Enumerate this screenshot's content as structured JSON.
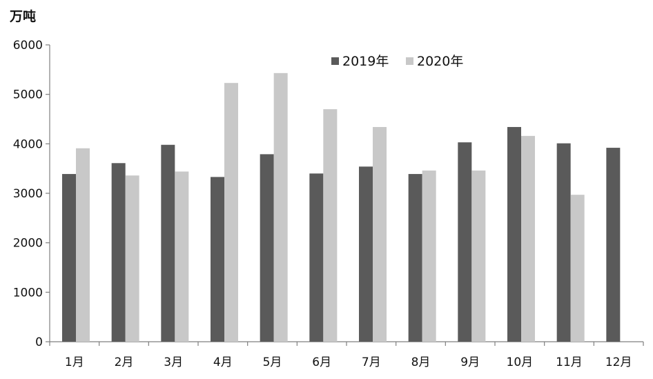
{
  "chart_data": {
    "type": "bar",
    "unit_label": "万吨",
    "categories": [
      "1月",
      "2月",
      "3月",
      "4月",
      "5月",
      "6月",
      "7月",
      "8月",
      "9月",
      "10月",
      "11月",
      "12月"
    ],
    "series": [
      {
        "name": "2019年",
        "color": "#5a5a5a",
        "values": [
          3390,
          3610,
          3980,
          3330,
          3790,
          3400,
          3540,
          3390,
          4030,
          4340,
          4010,
          3920
        ]
      },
      {
        "name": "2020年",
        "color": "#c8c8c8",
        "values": [
          3910,
          3360,
          3440,
          5230,
          5430,
          4700,
          4340,
          3460,
          3460,
          4160,
          2970,
          null
        ]
      }
    ],
    "ylim": [
      0,
      6000
    ],
    "yticks": [
      0,
      1000,
      2000,
      3000,
      4000,
      5000,
      6000
    ],
    "grid": false,
    "legend_position": "top-center"
  }
}
